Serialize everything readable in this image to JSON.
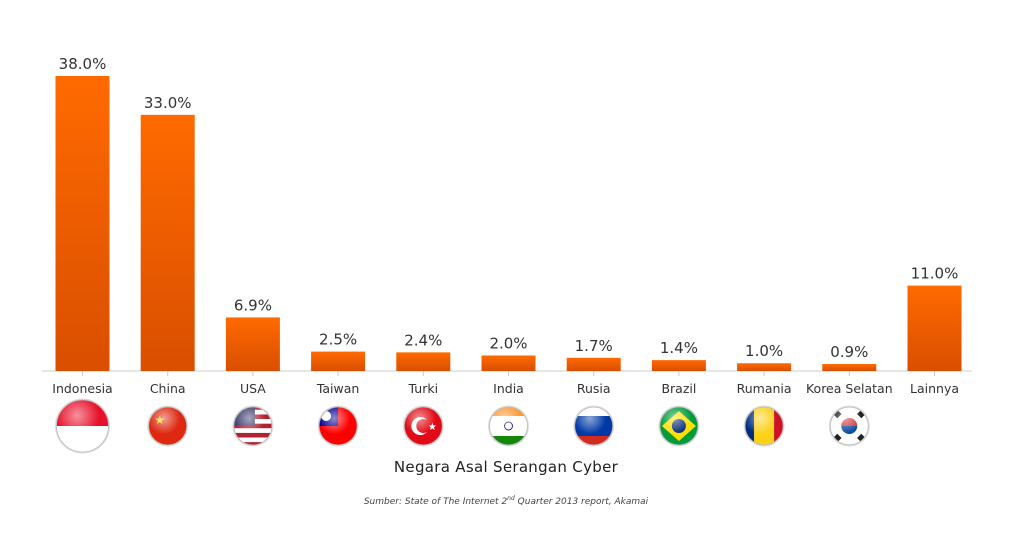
{
  "chart_data": {
    "type": "bar",
    "title": "Negara Asal Serangan Cyber",
    "source": {
      "prefix": "Sumber: State of The Internet 2",
      "superscript": "nd",
      "suffix": " Quarter 2013 report, Akamai"
    },
    "categories": [
      "Indonesia",
      "China",
      "USA",
      "Taiwan",
      "Turki",
      "India",
      "Rusia",
      "Brazil",
      "Rumania",
      "Korea Selatan",
      "Lainnya"
    ],
    "values": [
      38.0,
      33.0,
      6.9,
      2.5,
      2.4,
      2.0,
      1.7,
      1.4,
      1.0,
      0.9,
      11.0
    ],
    "data_labels": [
      "38.0%",
      "33.0%",
      "6.9%",
      "2.5%",
      "2.4%",
      "2.0%",
      "1.7%",
      "1.4%",
      "1.0%",
      "0.9%",
      "11.0%"
    ],
    "flags": [
      "indonesia-flag-icon",
      "china-flag-icon",
      "usa-flag-icon",
      "taiwan-flag-icon",
      "turkey-flag-icon",
      "india-flag-icon",
      "russia-flag-icon",
      "brazil-flag-icon",
      "romania-flag-icon",
      "south-korea-flag-icon",
      ""
    ],
    "ylim": [
      0,
      38.0
    ],
    "grid": false,
    "colors": {
      "bar_top": "#ff6a00",
      "bar_bottom": "#d94f00",
      "label": "#333333",
      "axis": "#cccccc"
    }
  }
}
